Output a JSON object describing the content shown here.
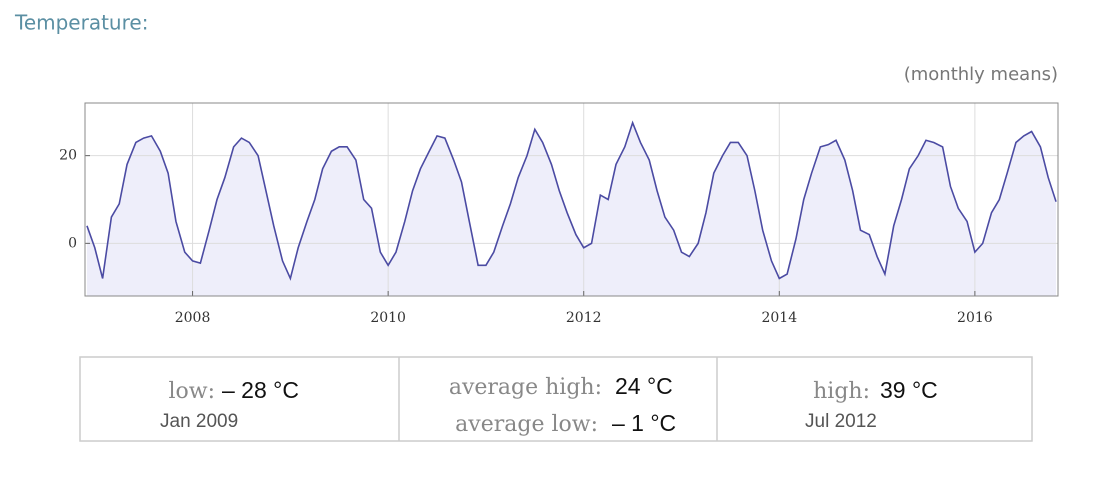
{
  "chart_data": {
    "type": "line",
    "title": "Temperature:",
    "subtitle": "(monthly means)",
    "x": [
      2006.92,
      2007,
      2007.08,
      2007.17,
      2007.25,
      2007.33,
      2007.42,
      2007.5,
      2007.58,
      2007.67,
      2007.75,
      2007.83,
      2007.92,
      2008,
      2008.08,
      2008.17,
      2008.25,
      2008.33,
      2008.42,
      2008.5,
      2008.58,
      2008.67,
      2008.75,
      2008.83,
      2008.92,
      2009,
      2009.08,
      2009.17,
      2009.25,
      2009.33,
      2009.42,
      2009.5,
      2009.58,
      2009.67,
      2009.75,
      2009.83,
      2009.92,
      2010,
      2010.08,
      2010.17,
      2010.25,
      2010.33,
      2010.42,
      2010.5,
      2010.58,
      2010.67,
      2010.75,
      2010.83,
      2010.92,
      2011,
      2011.08,
      2011.17,
      2011.25,
      2011.33,
      2011.42,
      2011.5,
      2011.58,
      2011.67,
      2011.75,
      2011.83,
      2011.92,
      2012,
      2012.08,
      2012.17,
      2012.25,
      2012.33,
      2012.42,
      2012.5,
      2012.58,
      2012.67,
      2012.75,
      2012.83,
      2012.92,
      2013,
      2013.08,
      2013.17,
      2013.25,
      2013.33,
      2013.42,
      2013.5,
      2013.58,
      2013.67,
      2013.75,
      2013.83,
      2013.92,
      2014,
      2014.08,
      2014.17,
      2014.25,
      2014.33,
      2014.42,
      2014.5,
      2014.58,
      2014.67,
      2014.75,
      2014.83,
      2014.92,
      2015,
      2015.08,
      2015.17,
      2015.25,
      2015.33,
      2015.42,
      2015.5,
      2015.58,
      2015.67,
      2015.75,
      2015.83,
      2015.92,
      2016,
      2016.08,
      2016.17,
      2016.25,
      2016.33,
      2016.42,
      2016.5,
      2016.58,
      2016.67,
      2016.75,
      2016.83
    ],
    "values": [
      4,
      -1,
      -8,
      6,
      9,
      18,
      23,
      24,
      24.5,
      21,
      16,
      5,
      -2,
      -4,
      -4.5,
      3,
      10,
      15,
      22,
      24,
      23,
      20,
      12,
      4,
      -4,
      -8,
      -1,
      5,
      10,
      17,
      21,
      22,
      22,
      19,
      10,
      8,
      -2,
      -5,
      -2,
      5,
      12,
      17,
      21,
      24.5,
      24,
      19,
      14,
      5,
      -5,
      -5,
      -2,
      4,
      9,
      15,
      20,
      26,
      23,
      18,
      12,
      7,
      2,
      -1,
      0,
      11,
      10,
      18,
      22,
      27.5,
      23,
      19,
      12,
      6,
      3,
      -2,
      -3,
      0,
      7,
      16,
      20,
      23,
      23,
      20,
      12,
      3,
      -4,
      -8,
      -7,
      1,
      10,
      16,
      22,
      22.5,
      23.5,
      19,
      12,
      3,
      2,
      -3,
      -7,
      4,
      10,
      17,
      20,
      23.5,
      23,
      22,
      13,
      8,
      5,
      -2,
      0,
      7,
      10,
      16,
      23,
      24.5,
      25.5,
      22,
      15,
      9.5
    ],
    "color": "#4b4ba3",
    "fill": "#eeeefa",
    "xlim": [
      2006.9,
      2016.85
    ],
    "ylim": [
      -12,
      32
    ],
    "xticks": [
      2008,
      2010,
      2012,
      2014,
      2016
    ],
    "yticks": [
      0,
      20
    ],
    "grid": true
  },
  "summary": {
    "low": {
      "label": "low:",
      "value": "– 28 °C",
      "date": "Jan 2009"
    },
    "average": {
      "high_label": "average high:",
      "high_value": "24 °C",
      "low_label": "average low:",
      "low_value": "– 1 °C"
    },
    "high": {
      "label": "high:",
      "value": "39 °C",
      "date": "Jul 2012"
    }
  }
}
